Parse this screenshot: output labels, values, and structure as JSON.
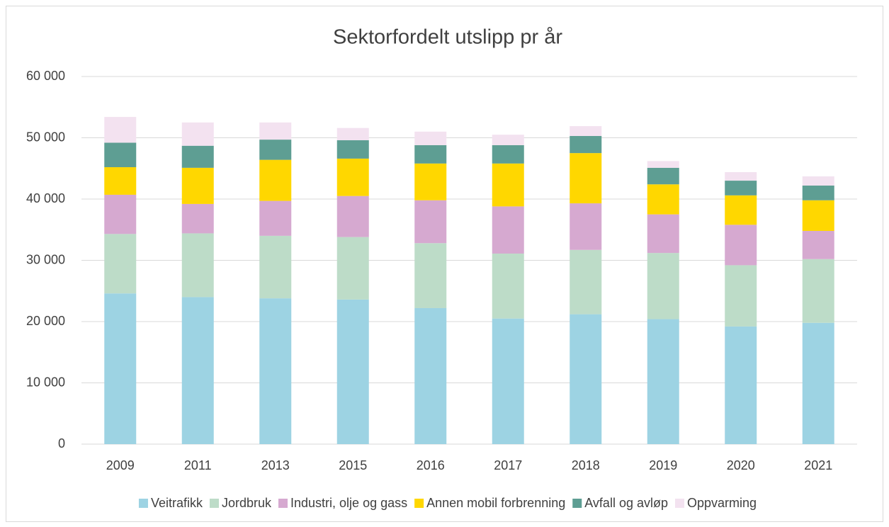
{
  "chart_data": {
    "type": "stacked-bar",
    "title": "Sektorfordelt utslipp pr år",
    "categories": [
      "2009",
      "2011",
      "2013",
      "2015",
      "2016",
      "2017",
      "2018",
      "2019",
      "2020",
      "2021"
    ],
    "series": [
      {
        "name": "Veitrafikk",
        "color": "#9dd3e3",
        "values": [
          24600,
          24000,
          23800,
          23600,
          22200,
          20500,
          21200,
          20400,
          19200,
          19800
        ]
      },
      {
        "name": "Jordbruk",
        "color": "#bddcc8",
        "values": [
          9700,
          10400,
          10200,
          10200,
          10600,
          10600,
          10500,
          10800,
          10000,
          10400
        ]
      },
      {
        "name": "Industri, olje og gass",
        "color": "#d6a9d0",
        "values": [
          6400,
          4800,
          5700,
          6700,
          7000,
          7700,
          7600,
          6300,
          6600,
          4600
        ]
      },
      {
        "name": "Annen mobil forbrenning",
        "color": "#ffd700",
        "values": [
          4500,
          5900,
          6700,
          6100,
          6000,
          7000,
          8200,
          4900,
          4800,
          5000
        ]
      },
      {
        "name": "Avfall og avløp",
        "color": "#5e9e93",
        "values": [
          4000,
          3600,
          3300,
          3000,
          3000,
          3000,
          2800,
          2700,
          2400,
          2400
        ]
      },
      {
        "name": "Oppvarming",
        "color": "#f3e2f0",
        "values": [
          4200,
          3800,
          2800,
          2000,
          2200,
          1700,
          1600,
          1100,
          1400,
          1500
        ]
      }
    ],
    "ylim": [
      0,
      60000
    ],
    "yticks": [
      0,
      {
        "value": 10000,
        "label": "10 000"
      },
      {
        "value": 20000,
        "label": "20 000"
      },
      {
        "value": 30000,
        "label": "30 000"
      },
      {
        "value": 40000,
        "label": "40 000"
      },
      {
        "value": 50000,
        "label": "50 000"
      },
      {
        "value": 60000,
        "label": "60 000"
      }
    ],
    "grid": true,
    "legend": "bottom"
  }
}
